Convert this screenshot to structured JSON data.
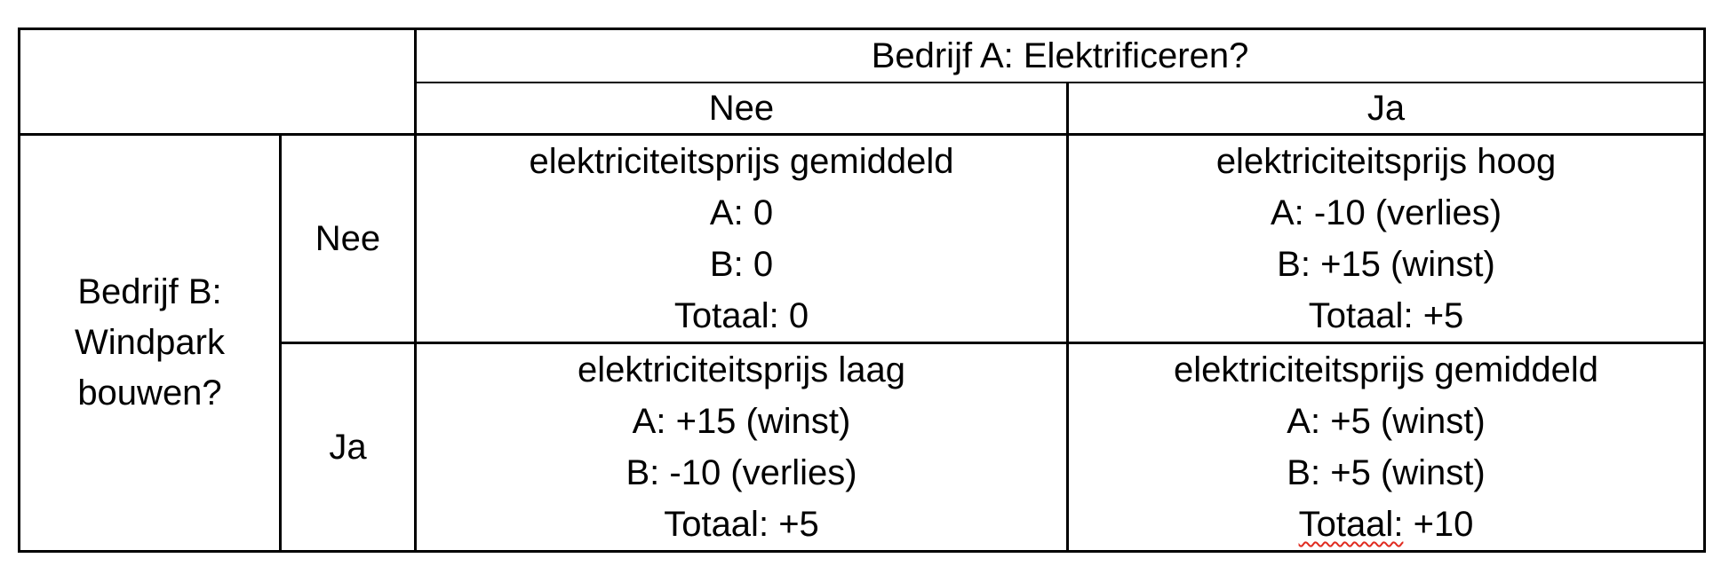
{
  "table": {
    "column_header": {
      "title": "Bedrijf A: Elektrificeren?",
      "options": [
        "Nee",
        "Ja"
      ]
    },
    "row_header": {
      "title_lines": [
        "Bedrijf B:",
        "Windpark",
        "bouwen?"
      ],
      "options": [
        "Nee",
        "Ja"
      ]
    },
    "cells": {
      "b_nee_a_nee": {
        "price": "elektriciteitsprijs gemiddeld",
        "a": "A: 0",
        "b": "B: 0",
        "total_label": "Totaal:",
        "total_value": "0"
      },
      "b_nee_a_ja": {
        "price": "elektriciteitsprijs hoog",
        "a": "A: -10 (verlies)",
        "b": "B: +15 (winst)",
        "total_label": "Totaal:",
        "total_value": "+5"
      },
      "b_ja_a_nee": {
        "price": "elektriciteitsprijs laag",
        "a": "A: +15 (winst)",
        "b": "B: -10 (verlies)",
        "total_label": "Totaal:",
        "total_value": "+5"
      },
      "b_ja_a_ja": {
        "price": "elektriciteitsprijs gemiddeld",
        "a": "A: +5 (winst)",
        "b": "B: +5 (winst)",
        "total_label": "Totaal:",
        "total_value": "+10",
        "spellcheck_underline": true
      }
    }
  },
  "colors": {
    "text": "#000000",
    "border": "#000000",
    "background": "#ffffff",
    "spellcheck_underline": "#e02b20"
  }
}
